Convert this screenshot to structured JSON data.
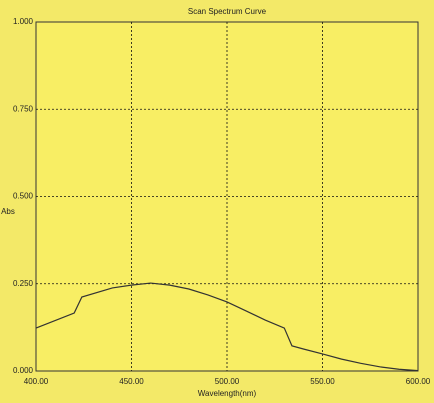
{
  "chart_data": {
    "type": "line",
    "title": "Scan Spectrum Curve",
    "x_label": "Wavelength(nm)",
    "y_label": "Abs",
    "x": [
      400,
      420,
      424,
      440,
      450,
      460,
      470,
      480,
      490,
      500,
      510,
      520,
      530,
      534,
      540,
      550,
      560,
      570,
      580,
      590,
      600
    ],
    "values": [
      0.123,
      0.166,
      0.212,
      0.238,
      0.246,
      0.252,
      0.246,
      0.235,
      0.218,
      0.198,
      0.172,
      0.146,
      0.123,
      0.072,
      0.063,
      0.049,
      0.034,
      0.022,
      0.012,
      0.005,
      0.001
    ],
    "color": "#333333",
    "xlim": [
      400,
      600
    ],
    "xticks": [
      {
        "value": 400,
        "label": "400.00"
      },
      {
        "value": 450,
        "label": "450.00"
      },
      {
        "value": 500,
        "label": "500.00"
      },
      {
        "value": 550,
        "label": "550.00"
      },
      {
        "value": 600,
        "label": "600.00"
      }
    ],
    "ylim": [
      0,
      1
    ],
    "yticks": [
      {
        "value": 0,
        "label": "0.000"
      },
      {
        "value": 0.25,
        "label": "0.250"
      },
      {
        "value": 0.5,
        "label": "0.500"
      },
      {
        "value": 0.75,
        "label": "0.750"
      },
      {
        "value": 1,
        "label": "1.000"
      }
    ],
    "grid": true
  }
}
